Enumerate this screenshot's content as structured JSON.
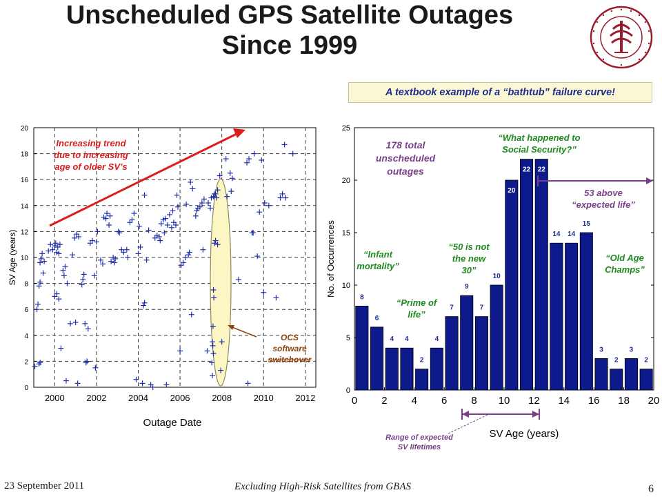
{
  "title": {
    "line1": "Unscheduled GPS Satellite Outages",
    "line2": "Since 1999"
  },
  "callout": "A textbook example of a “bathtub” failure curve!",
  "seal": {
    "ring_text_top": "LELAND STANFORD JUNIOR UNIVERSITY",
    "ring_text_bottom": "ORGANIZED 1891",
    "color": "#9b1c2e"
  },
  "footer": {
    "date": "23 September 2011",
    "title": "Excluding High-Risk Satellites from GBAS",
    "page": "6"
  },
  "colors": {
    "bar": "#0d1a8c",
    "marker": "#1f2fa8",
    "trend_arrow": "#dd1c1c",
    "ellipse_fill": "#fbf6c4",
    "brown": "#8b4513",
    "green": "#1e8a1e",
    "purple": "#7a3f8a"
  },
  "chart_data": [
    {
      "type": "scatter",
      "marker": "plus",
      "xlabel": "Outage Date",
      "ylabel": "SV Age (years)",
      "xlim": [
        1999.0,
        2012.5
      ],
      "ylim": [
        0,
        20
      ],
      "xticks": [
        2000,
        2002,
        2004,
        2006,
        2008,
        2010,
        2012
      ],
      "yticks": [
        0,
        2,
        4,
        6,
        8,
        10,
        12,
        14,
        16,
        18,
        20
      ],
      "annotations": {
        "trend": "Increasing trend due to increasing age of older SV’s",
        "ocs": "OCS software switchover"
      },
      "points": [
        [
          1999.05,
          1.6
        ],
        [
          1999.15,
          6.0
        ],
        [
          1999.2,
          6.4
        ],
        [
          1999.25,
          7.8
        ],
        [
          1999.3,
          8.1
        ],
        [
          1999.3,
          9.6
        ],
        [
          1999.35,
          9.9
        ],
        [
          1999.4,
          10.3
        ],
        [
          1999.45,
          8.8
        ],
        [
          1999.3,
          1.9
        ],
        [
          1999.25,
          1.8
        ],
        [
          1999.5,
          9.7
        ],
        [
          1999.7,
          10.5
        ],
        [
          1999.8,
          11.0
        ],
        [
          1999.9,
          10.6
        ],
        [
          2000.0,
          10.9
        ],
        [
          2000.05,
          11.1
        ],
        [
          2000.1,
          10.4
        ],
        [
          2000.15,
          10.8
        ],
        [
          2000.2,
          10.3
        ],
        [
          2000.25,
          11.0
        ],
        [
          2000.0,
          7.0
        ],
        [
          2000.1,
          7.2
        ],
        [
          2000.2,
          6.8
        ],
        [
          2000.3,
          3.0
        ],
        [
          2000.4,
          9.0
        ],
        [
          2000.5,
          9.3
        ],
        [
          2000.6,
          8.0
        ],
        [
          2000.45,
          8.6
        ],
        [
          2000.55,
          0.5
        ],
        [
          2000.75,
          4.9
        ],
        [
          2000.85,
          10.2
        ],
        [
          2000.95,
          11.5
        ],
        [
          2001.05,
          11.8
        ],
        [
          2001.15,
          11.6
        ],
        [
          2001.0,
          5.0
        ],
        [
          2001.1,
          0.3
        ],
        [
          2001.3,
          7.9
        ],
        [
          2001.35,
          8.3
        ],
        [
          2001.4,
          8.7
        ],
        [
          2001.45,
          4.9
        ],
        [
          2001.5,
          1.9
        ],
        [
          2001.55,
          2.0
        ],
        [
          2001.6,
          4.5
        ],
        [
          2001.7,
          11.1
        ],
        [
          2001.8,
          11.3
        ],
        [
          2001.9,
          8.6
        ],
        [
          2001.95,
          1.5
        ],
        [
          2002.05,
          12.0
        ],
        [
          2002.0,
          11.2
        ],
        [
          2002.2,
          9.8
        ],
        [
          2002.3,
          9.5
        ],
        [
          2002.35,
          13.1
        ],
        [
          2002.45,
          13.0
        ],
        [
          2002.5,
          13.4
        ],
        [
          2002.6,
          12.5
        ],
        [
          2002.7,
          9.7
        ],
        [
          2002.8,
          10.0
        ],
        [
          2002.9,
          9.9
        ],
        [
          2002.65,
          13.2
        ],
        [
          2002.85,
          9.6
        ],
        [
          2003.05,
          12.0
        ],
        [
          2003.1,
          11.9
        ],
        [
          2003.2,
          10.6
        ],
        [
          2003.3,
          10.4
        ],
        [
          2003.45,
          10.6
        ],
        [
          2003.5,
          10.0
        ],
        [
          2003.6,
          12.7
        ],
        [
          2003.7,
          12.9
        ],
        [
          2003.8,
          13.4
        ],
        [
          2003.9,
          0.6
        ],
        [
          2004.0,
          10.3
        ],
        [
          2004.1,
          10.8
        ],
        [
          2004.05,
          12.4
        ],
        [
          2004.2,
          0.3
        ],
        [
          2004.3,
          14.8
        ],
        [
          2004.4,
          9.8
        ],
        [
          2004.5,
          12.1
        ],
        [
          2004.3,
          6.5
        ],
        [
          2004.25,
          6.3
        ],
        [
          2004.6,
          0.2
        ],
        [
          2004.7,
          0.0
        ],
        [
          2004.8,
          11.5
        ],
        [
          2004.9,
          11.7
        ],
        [
          2005.0,
          11.6
        ],
        [
          2005.05,
          11.3
        ],
        [
          2005.1,
          12.6
        ],
        [
          2005.2,
          12.9
        ],
        [
          2005.25,
          11.9
        ],
        [
          2005.3,
          13.0
        ],
        [
          2005.35,
          0.2
        ],
        [
          2005.4,
          12.5
        ],
        [
          2005.5,
          13.3
        ],
        [
          2005.6,
          12.3
        ],
        [
          2005.65,
          13.6
        ],
        [
          2005.7,
          12.7
        ],
        [
          2005.8,
          12.5
        ],
        [
          2005.85,
          14.8
        ],
        [
          2005.9,
          13.9
        ],
        [
          2006.0,
          2.8
        ],
        [
          2006.05,
          9.4
        ],
        [
          2006.15,
          9.6
        ],
        [
          2006.25,
          10.0
        ],
        [
          2006.3,
          14.1
        ],
        [
          2006.4,
          10.2
        ],
        [
          2006.45,
          10.4
        ],
        [
          2006.5,
          15.8
        ],
        [
          2006.55,
          5.6
        ],
        [
          2006.6,
          15.3
        ],
        [
          2006.75,
          13.2
        ],
        [
          2006.8,
          13.6
        ],
        [
          2006.85,
          13.8
        ],
        [
          2006.95,
          13.9
        ],
        [
          2007.05,
          14.2
        ],
        [
          2007.1,
          10.6
        ],
        [
          2007.15,
          14.5
        ],
        [
          2007.3,
          2.8
        ],
        [
          2007.35,
          14.2
        ],
        [
          2007.45,
          13.8
        ],
        [
          2007.5,
          14.6
        ],
        [
          2007.6,
          14.7
        ],
        [
          2007.65,
          14.9
        ],
        [
          2007.7,
          14.9
        ],
        [
          2007.75,
          14.6
        ],
        [
          2007.6,
          7.5
        ],
        [
          2007.62,
          6.9
        ],
        [
          2007.58,
          4.7
        ],
        [
          2007.55,
          3.5
        ],
        [
          2007.57,
          3.2
        ],
        [
          2007.6,
          2.6
        ],
        [
          2007.52,
          1.9
        ],
        [
          2007.55,
          0.9
        ],
        [
          2007.65,
          11.1
        ],
        [
          2007.7,
          11.3
        ],
        [
          2007.8,
          11.0
        ],
        [
          2007.8,
          15.2
        ],
        [
          2007.9,
          16.3
        ],
        [
          2007.95,
          1.3
        ],
        [
          2008.0,
          3.5
        ],
        [
          2008.2,
          17.6
        ],
        [
          2008.25,
          14.7
        ],
        [
          2008.4,
          16.5
        ],
        [
          2008.5,
          16.1
        ],
        [
          2008.45,
          15.1
        ],
        [
          2008.8,
          8.3
        ],
        [
          2009.2,
          17.3
        ],
        [
          2009.3,
          17.6
        ],
        [
          2009.25,
          0.3
        ],
        [
          2009.45,
          11.9
        ],
        [
          2009.5,
          11.9
        ],
        [
          2009.55,
          18.0
        ],
        [
          2009.7,
          10.1
        ],
        [
          2009.8,
          13.5
        ],
        [
          2009.9,
          17.5
        ],
        [
          2010.0,
          7.3
        ],
        [
          2010.05,
          14.2
        ],
        [
          2010.25,
          14.0
        ],
        [
          2010.6,
          6.9
        ],
        [
          2010.8,
          14.6
        ],
        [
          2010.9,
          14.9
        ],
        [
          2011.0,
          18.7
        ],
        [
          2011.05,
          14.6
        ],
        [
          2011.4,
          18.0
        ]
      ]
    },
    {
      "type": "bar",
      "xlabel": "SV Age (years)",
      "ylabel": "No. of Occurrences",
      "xlim": [
        0,
        20
      ],
      "ylim": [
        0,
        25
      ],
      "xticks": [
        0,
        2,
        4,
        6,
        8,
        10,
        12,
        14,
        16,
        18,
        20
      ],
      "yticks": [
        0,
        5,
        10,
        15,
        20,
        25
      ],
      "bin_width": 1,
      "categories": [
        "0-1",
        "1-2",
        "2-3",
        "3-4",
        "4-5",
        "5-6",
        "6-7",
        "7-8",
        "8-9",
        "9-10",
        "10-11",
        "11-12",
        "12-13",
        "13-14",
        "14-15",
        "15-16",
        "16-17",
        "17-18",
        "18-19",
        "19-20"
      ],
      "values": [
        8,
        6,
        4,
        4,
        2,
        4,
        7,
        9,
        7,
        10,
        20,
        22,
        22,
        14,
        14,
        15,
        3,
        2,
        3,
        2
      ],
      "annotations": {
        "total": "178 total unscheduled outages",
        "infant": "“Infant mortality”",
        "prime": "“Prime of life”",
        "fifty": "“50 is not the new 30”",
        "social": "“What happened to Social Security?”",
        "above": "53 above “expected life”",
        "oldage": "“Old Age Champs”",
        "range": "Range of expected SV lifetimes"
      },
      "expected_life_range": [
        7.5,
        12.5
      ]
    }
  ]
}
